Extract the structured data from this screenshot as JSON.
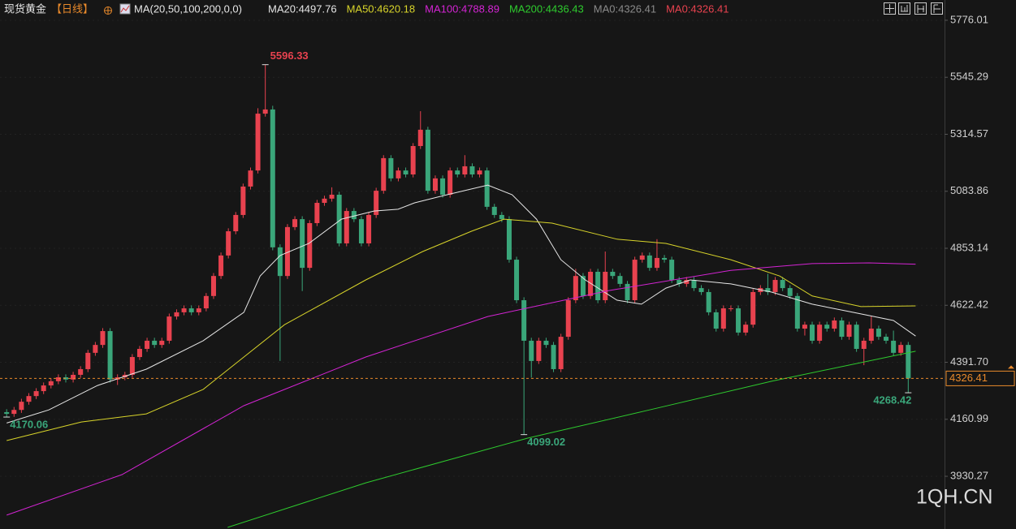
{
  "chart_data": {
    "type": "candlestick",
    "title": "现货黄金",
    "period": "【日线】",
    "indicator": "MA(20,50,100,200,0,0)",
    "watermark": "1QH.CN",
    "up_color": "#e8424f",
    "down_color": "#3aa67a",
    "ylim": [
      3717,
      5858
    ],
    "xlim": [
      -0.9,
      126.8
    ],
    "yticks": [
      5776.01,
      5545.29,
      5314.57,
      5083.86,
      4853.14,
      4622.42,
      {
        "value": 4391.7,
        "label": "4391.70"
      },
      4160.99,
      3930.27
    ],
    "grid": true,
    "open": [
      4190,
      4183,
      4199,
      4232,
      4255,
      4275,
      4298,
      4315,
      4331,
      4322,
      4341,
      4364,
      4430,
      4462,
      4518,
      4322,
      4331,
      4341,
      4413,
      4446,
      4479,
      4462,
      4479,
      4577,
      4594,
      4610,
      4594,
      4610,
      4660,
      4741,
      4824,
      4922,
      4988,
      5103,
      5168,
      5398,
      5415,
      4857,
      4741,
      4939,
      4971,
      4774,
      4955,
      5037,
      5054,
      5070,
      4873,
      5004,
      4971,
      4873,
      4988,
      5086,
      5218,
      5136,
      5168,
      5152,
      5267,
      5333,
      5086,
      5136,
      5070,
      5168,
      5152,
      5185,
      5152,
      5168,
      5021,
      4988,
      4971,
      4807,
      4643,
      4479,
      4397,
      4479,
      4462,
      4364,
      4495,
      4643,
      4741,
      4660,
      4758,
      4643,
      4758,
      4741,
      4709,
      4643,
      4807,
      4824,
      4774,
      4814,
      4807,
      4725,
      4709,
      4725,
      4692,
      4676,
      4594,
      4528,
      4610,
      4610,
      4512,
      4544,
      4676,
      4692,
      4676,
      4725,
      4692,
      4660,
      4528,
      4544,
      4479,
      4544,
      4528,
      4561,
      4495,
      4544,
      4446,
      4479,
      4528,
      4495,
      4479,
      4430,
      4462
    ],
    "high": [
      4202,
      4211,
      4244,
      4267,
      4287,
      4310,
      4327,
      4343,
      4343,
      4353,
      4376,
      4442,
      4474,
      4530,
      4530,
      4343,
      4353,
      4425,
      4458,
      4491,
      4491,
      4491,
      4589,
      4606,
      4622,
      4622,
      4622,
      4672,
      4753,
      4836,
      4934,
      5000,
      5115,
      5180,
      5420,
      5596.33,
      5430,
      4869,
      4951,
      4983,
      4983,
      4967,
      5049,
      5066,
      5100,
      5082,
      5016,
      5016,
      4983,
      5000,
      5098,
      5230,
      5230,
      5180,
      5180,
      5279,
      5408,
      5345,
      5148,
      5148,
      5180,
      5180,
      5230,
      5197,
      5180,
      5180,
      5033,
      5000,
      4983,
      4819,
      4655,
      4491,
      4491,
      4491,
      4474,
      4507,
      4655,
      4770,
      4753,
      4770,
      4770,
      4840,
      4770,
      4753,
      4721,
      4819,
      4836,
      4836,
      4890,
      4826,
      4819,
      4737,
      4737,
      4737,
      4704,
      4688,
      4606,
      4622,
      4622,
      4622,
      4556,
      4688,
      4704,
      4750,
      4737,
      4737,
      4704,
      4672,
      4556,
      4556,
      4556,
      4556,
      4573,
      4573,
      4556,
      4556,
      4491,
      4580,
      4540,
      4507,
      4520,
      4474,
      4474
    ],
    "low": [
      4170.06,
      4171,
      4187,
      4220,
      4243,
      4263,
      4286,
      4303,
      4310,
      4310,
      4329,
      4352,
      4418,
      4450,
      4310,
      4300,
      4319,
      4329,
      4401,
      4434,
      4450,
      4450,
      4467,
      4565,
      4582,
      4582,
      4582,
      4598,
      4648,
      4729,
      4812,
      4910,
      4976,
      5091,
      5156,
      5386,
      4845,
      4397,
      4729,
      4927,
      4680,
      4762,
      4943,
      5025,
      5042,
      4861,
      4861,
      4959,
      4861,
      4861,
      4976,
      5074,
      5124,
      5124,
      5140,
      5140,
      5255,
      5074,
      5074,
      5058,
      5058,
      5140,
      5140,
      5140,
      5140,
      5009,
      4976,
      4959,
      4795,
      4631,
      4099.02,
      4330,
      4385,
      4450,
      4352,
      4352,
      4483,
      4631,
      4648,
      4648,
      4631,
      4631,
      4729,
      4697,
      4631,
      4631,
      4795,
      4762,
      4762,
      4795,
      4713,
      4697,
      4697,
      4680,
      4664,
      4582,
      4516,
      4516,
      4598,
      4500,
      4500,
      4532,
      4664,
      4664,
      4664,
      4680,
      4648,
      4516,
      4500,
      4467,
      4467,
      4516,
      4516,
      4483,
      4483,
      4434,
      4380,
      4467,
      4483,
      4467,
      4418,
      4418,
      4268.42
    ],
    "close": [
      4183,
      4199,
      4232,
      4255,
      4275,
      4298,
      4315,
      4331,
      4322,
      4341,
      4364,
      4430,
      4462,
      4518,
      4322,
      4331,
      4341,
      4413,
      4446,
      4479,
      4462,
      4479,
      4577,
      4594,
      4610,
      4594,
      4610,
      4660,
      4741,
      4824,
      4922,
      4988,
      5103,
      5168,
      5398,
      5415,
      4857,
      4741,
      4939,
      4971,
      4774,
      4955,
      5037,
      5054,
      5070,
      4873,
      5004,
      4971,
      4873,
      4988,
      5086,
      5218,
      5136,
      5168,
      5152,
      5267,
      5333,
      5086,
      5136,
      5070,
      5168,
      5152,
      5185,
      5152,
      5168,
      5021,
      4988,
      4971,
      4807,
      4643,
      4479,
      4397,
      4479,
      4462,
      4364,
      4495,
      4643,
      4741,
      4660,
      4758,
      4643,
      4758,
      4741,
      4709,
      4643,
      4807,
      4824,
      4774,
      4814,
      4807,
      4725,
      4709,
      4725,
      4692,
      4676,
      4594,
      4528,
      4610,
      4610,
      4512,
      4544,
      4676,
      4692,
      4676,
      4725,
      4692,
      4660,
      4528,
      4544,
      4479,
      4544,
      4528,
      4561,
      4495,
      4544,
      4446,
      4479,
      4528,
      4495,
      4479,
      4430,
      4462,
      4326.41
    ],
    "series": [
      {
        "name": "MA20:4497.76",
        "color": "#e6e6e6",
        "x": [
          0,
          5.7,
          12.3,
          18.9,
          26.6,
          32.1,
          34.3,
          37.0,
          40.9,
          45.3,
          49.7,
          52.97,
          55.2,
          59.6,
          65.1,
          68.4,
          71.7,
          75.0,
          78.3,
          82.6,
          85.9,
          89.2,
          92.5,
          98.0,
          103.5,
          109.0,
          114.5,
          120.0,
          123
        ],
        "values": [
          4146,
          4199,
          4298,
          4364,
          4479,
          4594,
          4741,
          4824,
          4873,
          4971,
          5004,
          5011,
          5037,
          5070,
          5109,
          5070,
          4971,
          4807,
          4725,
          4643,
          4627,
          4692,
          4725,
          4709,
          4676,
          4627,
          4594,
          4561,
          4497.76
        ]
      },
      {
        "name": "MA50:4620.18",
        "color": "#d8d42a",
        "x": [
          0,
          10.1,
          18.9,
          26.6,
          32.1,
          37.6,
          48.6,
          56.3,
          62.9,
          67.3,
          73.8,
          82.6,
          89.2,
          98.0,
          104.6,
          109.0,
          115.6,
          123
        ],
        "values": [
          4075,
          4150,
          4183,
          4282,
          4413,
          4544,
          4725,
          4840,
          4922,
          4971,
          4955,
          4890,
          4873,
          4807,
          4741,
          4660,
          4617,
          4620.18
        ]
      },
      {
        "name": "MA100:4788.89",
        "color": "#d424d4",
        "x": [
          0,
          15.6,
          32.1,
          48.6,
          65.1,
          81.5,
          98.0,
          109.0,
          116.7,
          123
        ],
        "values": [
          3773,
          3937,
          4216,
          4413,
          4577,
          4682,
          4764,
          4791,
          4794,
          4788.89
        ]
      },
      {
        "name": "MA200:4436.43",
        "color": "#2ecb2e",
        "x": [
          29.9,
          48.6,
          70.5,
          87.0,
          103.5,
          123
        ],
        "values": [
          3723.5,
          3904,
          4084.7,
          4199,
          4315,
          4436.43
        ]
      }
    ],
    "legend_extra": [
      {
        "name": "MA0:4326.41",
        "color": "#8a8a8a"
      },
      {
        "name": "MA0:4326.41",
        "color": "#e8424f"
      }
    ],
    "annotations": [
      {
        "label": "5596.33",
        "x": 35,
        "y": 5596.33,
        "color": "#e8424f"
      },
      {
        "label": "4170.06",
        "x": 0,
        "y": 4170.06,
        "color": "#3aa67a"
      },
      {
        "label": "4099.02",
        "x": 70,
        "y": 4099.02,
        "color": "#3aa67a"
      },
      {
        "label": "4268.42",
        "x": 122,
        "y": 4268.42,
        "color": "#3aa67a"
      }
    ],
    "last_price": {
      "value": 4326.41,
      "label": "4326.41",
      "color": "#e8892b"
    }
  }
}
